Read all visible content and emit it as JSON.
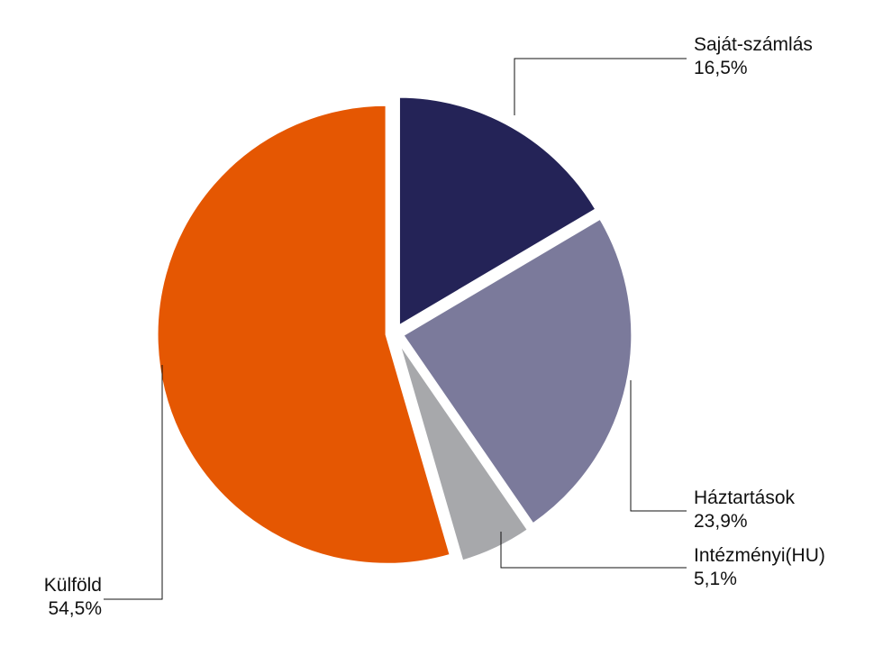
{
  "chart_data": {
    "type": "pie",
    "title": "",
    "slices": [
      {
        "name": "Saját-számlás",
        "value": 16.5,
        "label": "16,5%",
        "color": "#242357"
      },
      {
        "name": "Háztartások",
        "value": 23.9,
        "label": "23,9%",
        "color": "#7b7a9b"
      },
      {
        "name": "Intézményi(HU)",
        "value": 5.1,
        "label": "5,1%",
        "color": "#a7a8ab"
      },
      {
        "name": "Külföld",
        "value": 54.5,
        "label": "54,5%",
        "color": "#e55702"
      }
    ],
    "start_angle_deg": 0,
    "direction": "clockwise",
    "exploded": true,
    "legend": "none"
  }
}
